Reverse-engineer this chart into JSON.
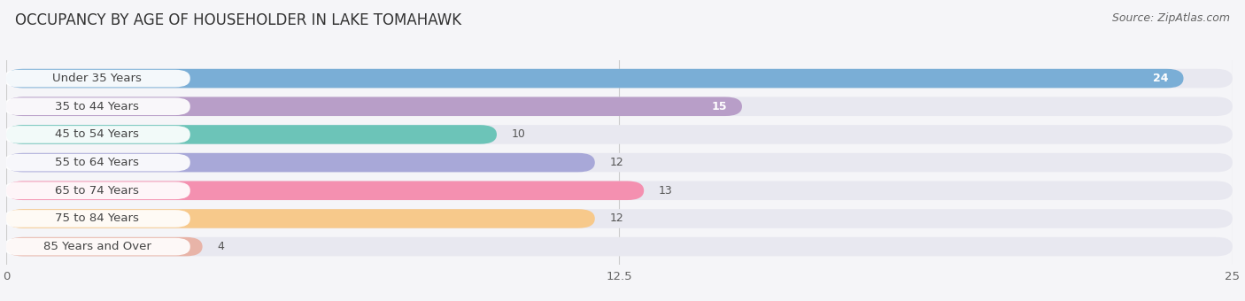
{
  "title": "OCCUPANCY BY AGE OF HOUSEHOLDER IN LAKE TOMAHAWK",
  "source": "Source: ZipAtlas.com",
  "categories": [
    "Under 35 Years",
    "35 to 44 Years",
    "45 to 54 Years",
    "55 to 64 Years",
    "65 to 74 Years",
    "75 to 84 Years",
    "85 Years and Over"
  ],
  "values": [
    24,
    15,
    10,
    12,
    13,
    12,
    4
  ],
  "bar_colors": [
    "#7aaed6",
    "#b89ec8",
    "#6cc4b8",
    "#a8a8d8",
    "#f490b0",
    "#f7c98b",
    "#e8b4a8"
  ],
  "xlim": [
    0,
    25
  ],
  "xticks": [
    0,
    12.5,
    25
  ],
  "background_color": "#f5f5f8",
  "bar_bg_color": "#e8e8f0",
  "plot_bg_color": "#f5f5f8",
  "title_fontsize": 12,
  "source_fontsize": 9,
  "label_fontsize": 9.5,
  "value_fontsize": 9
}
